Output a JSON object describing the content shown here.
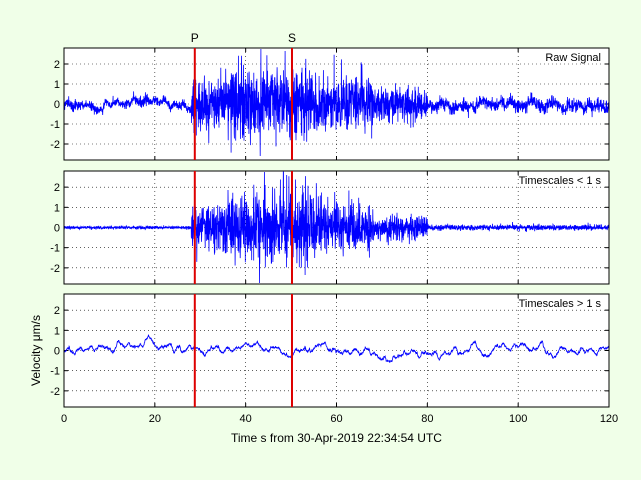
{
  "chart_data": {
    "type": "line",
    "xlabel": "Time s from 30-Apr-2019 22:34:54 UTC",
    "ylabel": "Velocity μm/s",
    "xlim": [
      0,
      120
    ],
    "x_ticks": [
      "0",
      "20",
      "40",
      "60",
      "80",
      "100",
      "120"
    ],
    "ylim": [
      -2.8,
      2.8
    ],
    "y_ticks": [
      "2",
      "1",
      "0",
      "-1",
      "-2"
    ],
    "grid": "dotted",
    "line_color": "#0000ff",
    "marker_color": "#dd0000",
    "phase_markers": [
      {
        "label": "P",
        "time": 28.8
      },
      {
        "label": "S",
        "time": 50.2
      }
    ],
    "panels": [
      {
        "title": "Raw Signal",
        "segments": [
          {
            "t0": 0,
            "t1": 28,
            "amp": 0.25,
            "ldf": 0.15
          },
          {
            "t0": 28,
            "t1": 36,
            "amp": 1.4,
            "ldf": 0.1
          },
          {
            "t0": 36,
            "t1": 47,
            "amp": 1.9,
            "ldf": 0.1
          },
          {
            "t0": 47,
            "t1": 56,
            "amp": 1.9,
            "ldf": 0.1
          },
          {
            "t0": 56,
            "t1": 68,
            "amp": 1.5,
            "ldf": 0.1
          },
          {
            "t0": 68,
            "t1": 80,
            "amp": 0.9,
            "ldf": 0.12
          },
          {
            "t0": 80,
            "t1": 120,
            "amp": 0.35,
            "ldf": 0.15
          }
        ]
      },
      {
        "title": "Timescales < 1 s",
        "segments": [
          {
            "t0": 0,
            "t1": 28,
            "amp": 0.08,
            "ldf": 0
          },
          {
            "t0": 28,
            "t1": 36,
            "amp": 1.4,
            "ldf": 0
          },
          {
            "t0": 36,
            "t1": 47,
            "amp": 1.9,
            "ldf": 0
          },
          {
            "t0": 47,
            "t1": 56,
            "amp": 1.9,
            "ldf": 0
          },
          {
            "t0": 56,
            "t1": 68,
            "amp": 1.3,
            "ldf": 0
          },
          {
            "t0": 68,
            "t1": 80,
            "amp": 0.7,
            "ldf": 0
          },
          {
            "t0": 80,
            "t1": 120,
            "amp": 0.15,
            "ldf": 0
          }
        ]
      },
      {
        "title": "Timescales > 1 s",
        "segments": [
          {
            "t0": 0,
            "t1": 120,
            "amp": 0,
            "ldf": 0.17
          }
        ]
      }
    ]
  }
}
